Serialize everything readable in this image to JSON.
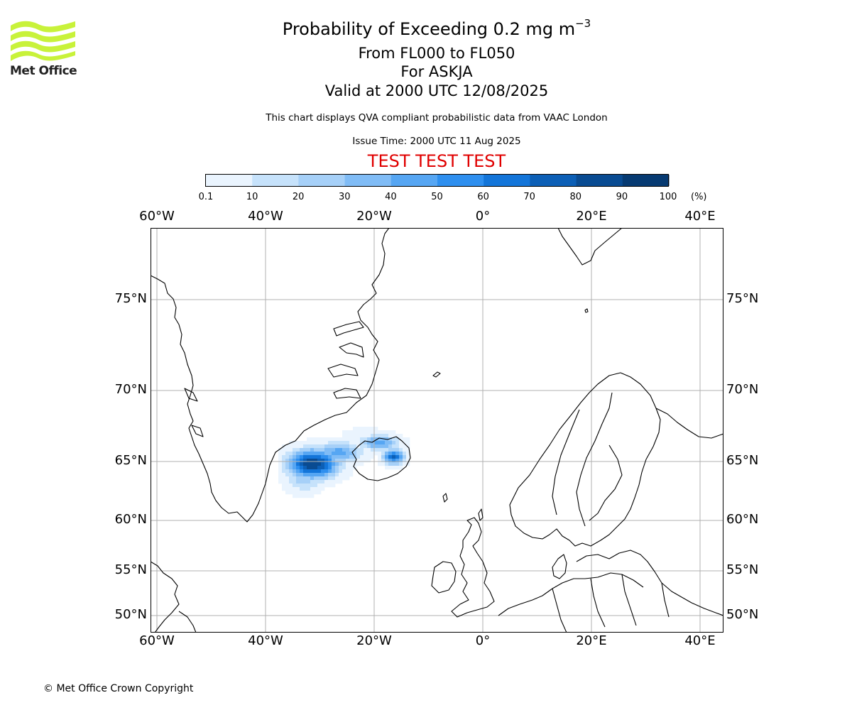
{
  "title": {
    "line1_prefix": "Probability of Exceeding 0.2 mg m",
    "line1_exponent": "−3",
    "line2": "From FL000 to FL050",
    "line3": "For ASKJA",
    "line4": "Valid at 2000 UTC 12/08/2025"
  },
  "subtitle": "This chart displays QVA compliant probabilistic data from VAAC London",
  "issue_time": "Issue Time: 2000 UTC 11 Aug 2025",
  "banner": "TEST TEST TEST",
  "logo_text": "Met Office",
  "copyright": "© Met Office Crown Copyright",
  "colorbar": {
    "ticks": [
      "0.1",
      "10",
      "20",
      "30",
      "40",
      "50",
      "60",
      "70",
      "80",
      "90",
      "100"
    ],
    "unit": "(%)",
    "colors": [
      "#eaf4fe",
      "#c6e2fb",
      "#a6d0f8",
      "#80bcf6",
      "#56a6f3",
      "#2e8fef",
      "#1375d9",
      "#0c5fb6",
      "#094b92",
      "#063a72",
      "#042a54"
    ]
  },
  "map": {
    "lon_labels": [
      "60°W",
      "40°W",
      "20°W",
      "0°",
      "20°E",
      "40°E"
    ],
    "lat_labels": [
      "75°N",
      "70°N",
      "65°N",
      "60°N",
      "55°N",
      "50°N"
    ],
    "grid_color": "#b0b0b0",
    "coast_color": "#000000"
  }
}
